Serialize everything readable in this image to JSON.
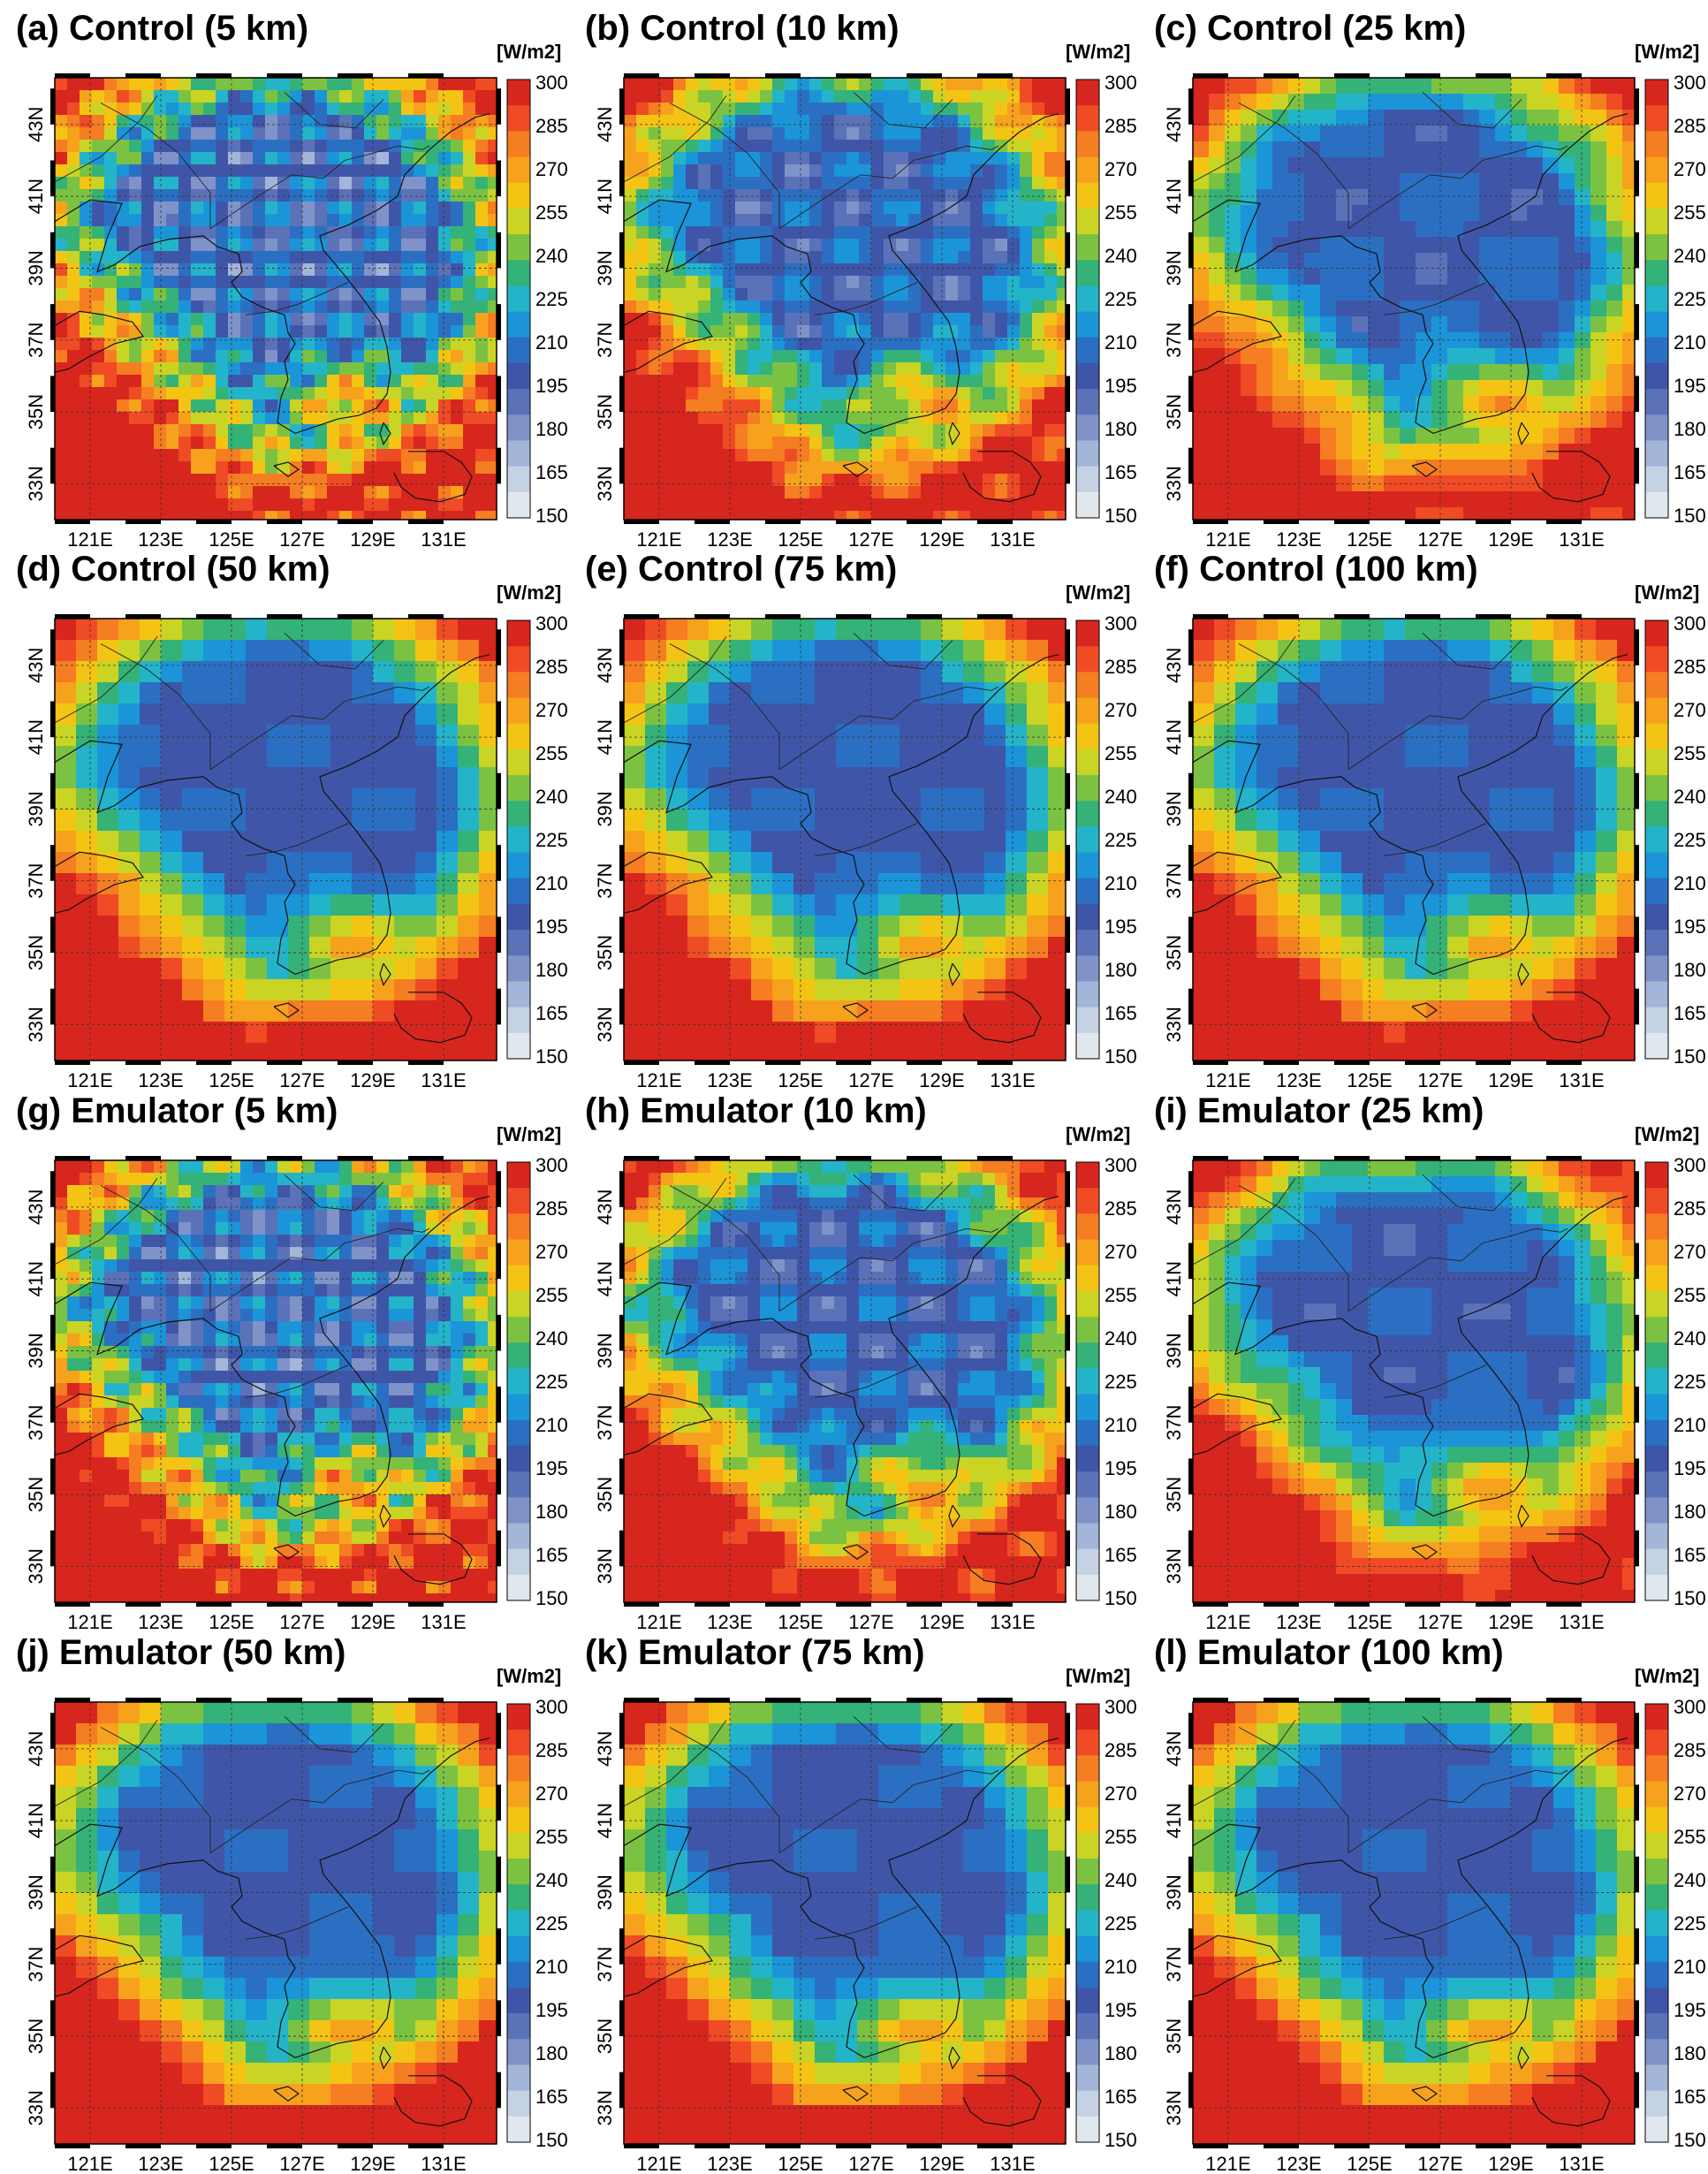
{
  "unit": "[W/m2]",
  "colorbar": {
    "ticks": [
      "300",
      "285",
      "270",
      "255",
      "240",
      "225",
      "210",
      "195",
      "180",
      "165",
      "150"
    ],
    "colors": [
      "#d7261e",
      "#ef4b25",
      "#f57d22",
      "#f7a21d",
      "#f4c414",
      "#c9d424",
      "#7cc242",
      "#35b277",
      "#24b4c9",
      "#1b95d8",
      "#2b6fc2",
      "#3f56a8",
      "#5b72b8",
      "#7f93c8",
      "#a3b5d8",
      "#c5d2e4",
      "#e0e8ee"
    ]
  },
  "axes": {
    "lon_labels": [
      "121E",
      "123E",
      "125E",
      "127E",
      "129E",
      "131E"
    ],
    "lat_labels": [
      "43N",
      "41N",
      "39N",
      "37N",
      "35N",
      "33N"
    ]
  },
  "panels": [
    {
      "title": "(a) Control (5 km)",
      "res": 5
    },
    {
      "title": "(b) Control (10 km)",
      "res": 10
    },
    {
      "title": "(c) Control (25 km)",
      "res": 25
    },
    {
      "title": "(d) Control (50 km)",
      "res": 50
    },
    {
      "title": "(e) Control (75 km)",
      "res": 75
    },
    {
      "title": "(f) Control (100 km)",
      "res": 100
    },
    {
      "title": "(g) Emulator (5 km)",
      "res": 5
    },
    {
      "title": "(h) Emulator (10 km)",
      "res": 10
    },
    {
      "title": "(i) Emulator (25 km)",
      "res": 25
    },
    {
      "title": "(j) Emulator (50 km)",
      "res": 50
    },
    {
      "title": "(k) Emulator (75 km)",
      "res": 75
    },
    {
      "title": "(l) Emulator (100 km)",
      "res": 100
    }
  ]
}
